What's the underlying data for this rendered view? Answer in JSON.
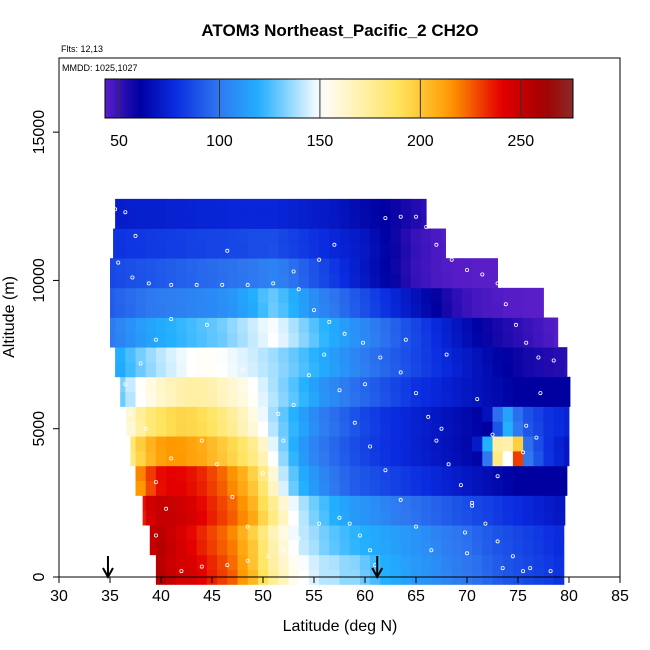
{
  "chart_data": {
    "type": "heatmap",
    "title": "ATOM3 Northeast_Pacific_2 CH2O",
    "flights_label": "Flts: 12,13",
    "mmdd_label": "MMDD: 1025,1027",
    "xlabel": "Latitude (deg N)",
    "ylabel": "Altitude (m)",
    "xlim": [
      30,
      85
    ],
    "ylim": [
      0,
      17500
    ],
    "x_ticks": [
      30,
      35,
      40,
      45,
      50,
      55,
      60,
      65,
      70,
      75,
      80,
      85
    ],
    "x_tick_labels": [
      "30",
      "35",
      "40",
      "45",
      "50",
      "55",
      "60",
      "65",
      "70",
      "75",
      "80",
      "85"
    ],
    "y_ticks": [
      0,
      5000,
      10000,
      15000
    ],
    "y_tick_labels": [
      "0",
      "5000",
      "10000",
      "15000"
    ],
    "colorbar": {
      "min": 43,
      "max": 276,
      "ticks": [
        50,
        100,
        150,
        200,
        250
      ],
      "tick_labels": [
        "50",
        "100",
        "150",
        "200",
        "250"
      ],
      "colors": [
        "#5a1ec9",
        "#0000a0",
        "#0a2ce0",
        "#2f78f0",
        "#22b0ff",
        "#ffffff",
        "#ffe35a",
        "#ff9900",
        "#e50000",
        "#a00000",
        "#8c2a2a"
      ]
    },
    "arrows_latitude": [
      34.8,
      61.2
    ],
    "latitude_bins": [
      35,
      36,
      37,
      38,
      39,
      40,
      41,
      42,
      43,
      44,
      45,
      46,
      47,
      48,
      49,
      50,
      51,
      52,
      53,
      54,
      55,
      56,
      57,
      58,
      59,
      60,
      61,
      62,
      63,
      64,
      65,
      66,
      67,
      68,
      69,
      70,
      71,
      72,
      73,
      74,
      75,
      76,
      77,
      78,
      79,
      80
    ],
    "altitude_bands": [
      {
        "altitude_m": 250,
        "values": [
          200,
          225,
          240,
          250,
          255,
          255,
          250,
          245,
          245,
          240,
          235,
          230,
          225,
          215,
          205,
          190,
          175,
          165,
          155,
          150,
          145,
          140,
          140,
          135,
          135,
          130,
          125,
          120,
          118,
          115,
          112,
          110,
          108,
          105,
          102,
          100,
          98,
          95,
          92,
          90,
          88,
          86,
          84,
          82,
          80,
          78
        ]
      },
      {
        "altitude_m": 1250,
        "values": [
          190,
          215,
          235,
          245,
          250,
          255,
          250,
          245,
          240,
          235,
          230,
          225,
          220,
          210,
          200,
          185,
          170,
          160,
          150,
          142,
          138,
          132,
          128,
          125,
          122,
          120,
          118,
          116,
          114,
          112,
          110,
          108,
          105,
          102,
          100,
          98,
          95,
          92,
          90,
          88,
          86,
          84,
          82,
          80,
          78,
          76
        ]
      },
      {
        "altitude_m": 2250,
        "values": [
          180,
          200,
          220,
          235,
          245,
          250,
          250,
          248,
          245,
          240,
          235,
          230,
          225,
          218,
          210,
          195,
          180,
          165,
          150,
          140,
          132,
          126,
          120,
          116,
          112,
          110,
          108,
          105,
          102,
          100,
          98,
          96,
          94,
          92,
          90,
          88,
          86,
          84,
          82,
          80,
          78,
          76,
          74,
          72,
          70,
          68
        ]
      },
      {
        "altitude_m": 3250,
        "values": [
          160,
          180,
          200,
          215,
          228,
          238,
          240,
          240,
          238,
          235,
          230,
          225,
          218,
          210,
          200,
          185,
          165,
          145,
          130,
          120,
          112,
          106,
          100,
          96,
          92,
          90,
          88,
          86,
          84,
          82,
          80,
          78,
          76,
          74,
          72,
          70,
          68,
          66,
          64,
          62,
          60,
          60,
          60,
          60,
          60,
          60
        ]
      },
      {
        "altitude_m": 4250,
        "values": [
          140,
          160,
          180,
          195,
          205,
          212,
          215,
          215,
          212,
          210,
          205,
          200,
          195,
          188,
          180,
          168,
          150,
          135,
          122,
          112,
          105,
          100,
          96,
          92,
          88,
          85,
          82,
          80,
          78,
          76,
          74,
          72,
          70,
          68,
          66,
          64,
          62,
          100,
          180,
          150,
          230,
          100,
          90,
          80,
          75,
          70
        ]
      },
      {
        "altitude_m": 5250,
        "values": [
          130,
          145,
          160,
          172,
          182,
          188,
          192,
          195,
          194,
          192,
          188,
          182,
          176,
          168,
          160,
          150,
          140,
          130,
          122,
          115,
          108,
          102,
          98,
          94,
          90,
          86,
          83,
          80,
          78,
          76,
          74,
          72,
          70,
          68,
          66,
          64,
          62,
          60,
          90,
          120,
          100,
          90,
          85,
          80,
          78,
          75
        ]
      },
      {
        "altitude_m": 6250,
        "values": [
          120,
          130,
          140,
          150,
          156,
          162,
          166,
          170,
          172,
          172,
          170,
          166,
          162,
          158,
          152,
          146,
          140,
          134,
          128,
          122,
          116,
          110,
          106,
          102,
          98,
          95,
          92,
          89,
          86,
          83,
          80,
          78,
          76,
          74,
          72,
          70,
          68,
          66,
          64,
          62,
          60,
          60,
          60,
          60,
          60,
          60
        ]
      },
      {
        "altitude_m": 7250,
        "values": [
          110,
          118,
          124,
          130,
          135,
          140,
          144,
          147,
          150,
          152,
          152,
          150,
          148,
          146,
          144,
          141,
          138,
          134,
          130,
          126,
          122,
          118,
          114,
          110,
          106,
          102,
          98,
          95,
          92,
          89,
          86,
          83,
          80,
          77,
          74,
          71,
          68,
          65,
          62,
          60,
          58,
          56,
          55,
          54,
          53,
          52
        ]
      },
      {
        "altitude_m": 8250,
        "values": [
          100,
          104,
          108,
          112,
          115,
          118,
          120,
          122,
          124,
          126,
          128,
          130,
          134,
          138,
          142,
          146,
          150,
          146,
          140,
          134,
          128,
          122,
          118,
          114,
          110,
          106,
          102,
          98,
          94,
          90,
          86,
          82,
          78,
          74,
          70,
          66,
          62,
          58,
          56,
          54,
          52,
          50,
          48,
          46,
          44,
          43
        ]
      },
      {
        "altitude_m": 9250,
        "values": [
          92,
          94,
          96,
          98,
          100,
          101,
          102,
          103,
          104,
          105,
          106,
          108,
          110,
          114,
          118,
          124,
          130,
          126,
          120,
          114,
          108,
          104,
          100,
          96,
          92,
          88,
          84,
          80,
          76,
          72,
          68,
          64,
          60,
          56,
          52,
          49,
          47,
          46,
          45,
          44,
          44,
          43,
          43,
          43,
          43,
          43
        ]
      },
      {
        "altitude_m": 10250,
        "values": [
          86,
          87,
          88,
          89,
          90,
          91,
          92,
          93,
          94,
          95,
          96,
          97,
          98,
          99,
          100,
          102,
          104,
          102,
          98,
          94,
          90,
          86,
          82,
          78,
          74,
          70,
          66,
          62,
          58,
          54,
          50,
          48,
          46,
          45,
          44,
          44,
          43,
          43,
          43,
          43,
          43,
          43,
          43,
          43,
          43,
          43
        ]
      },
      {
        "altitude_m": 11250,
        "values": [
          80,
          80,
          81,
          81,
          82,
          82,
          83,
          83,
          84,
          84,
          85,
          85,
          86,
          86,
          87,
          87,
          88,
          86,
          84,
          82,
          80,
          78,
          76,
          74,
          72,
          70,
          66,
          62,
          58,
          54,
          50,
          48,
          46,
          45,
          44,
          44,
          43,
          43,
          43,
          43,
          43,
          43,
          43,
          43,
          43,
          43
        ]
      },
      {
        "altitude_m": 12250,
        "values": [
          72,
          72,
          72,
          73,
          73,
          73,
          74,
          74,
          74,
          75,
          75,
          75,
          76,
          76,
          76,
          76,
          76,
          75,
          74,
          73,
          72,
          71,
          70,
          68,
          66,
          64,
          62,
          60,
          58,
          56,
          54,
          52,
          50,
          48,
          46,
          45,
          44,
          44,
          43,
          43,
          43,
          43,
          43,
          43,
          43,
          43
        ]
      }
    ],
    "profile_extent": [
      {
        "altitude_m": 250,
        "lat_min": 39.5,
        "lat_max": 79.5
      },
      {
        "altitude_m": 1250,
        "lat_min": 38.9,
        "lat_max": 79.5
      },
      {
        "altitude_m": 2250,
        "lat_min": 38.2,
        "lat_max": 79.6
      },
      {
        "altitude_m": 3250,
        "lat_min": 37.5,
        "lat_max": 79.8
      },
      {
        "altitude_m": 4250,
        "lat_min": 37.0,
        "lat_max": 80.0
      },
      {
        "altitude_m": 5250,
        "lat_min": 36.6,
        "lat_max": 80.0
      },
      {
        "altitude_m": 6250,
        "lat_min": 36.0,
        "lat_max": 80.1
      },
      {
        "altitude_m": 7250,
        "lat_min": 35.5,
        "lat_max": 79.8
      },
      {
        "altitude_m": 8250,
        "lat_min": 35.0,
        "lat_max": 78.9
      },
      {
        "altitude_m": 9250,
        "lat_min": 35.0,
        "lat_max": 77.5
      },
      {
        "altitude_m": 10250,
        "lat_min": 35.0,
        "lat_max": 73.0
      },
      {
        "altitude_m": 11250,
        "lat_min": 35.3,
        "lat_max": 67.9
      },
      {
        "altitude_m": 12250,
        "lat_min": 35.5,
        "lat_max": 66.0
      }
    ],
    "flight_track": [
      {
        "lat": 35.5,
        "alt": 12400
      },
      {
        "lat": 36.5,
        "alt": 12300
      },
      {
        "lat": 37.5,
        "alt": 11500
      },
      {
        "lat": 35.8,
        "alt": 10600
      },
      {
        "lat": 37.2,
        "alt": 10100
      },
      {
        "lat": 38.8,
        "alt": 9900
      },
      {
        "lat": 41.0,
        "alt": 9850
      },
      {
        "lat": 43.5,
        "alt": 9850
      },
      {
        "lat": 46.0,
        "alt": 9850
      },
      {
        "lat": 48.5,
        "alt": 9850
      },
      {
        "lat": 51.0,
        "alt": 9900
      },
      {
        "lat": 53.0,
        "alt": 10300
      },
      {
        "lat": 53.5,
        "alt": 9700
      },
      {
        "lat": 55.0,
        "alt": 9000
      },
      {
        "lat": 56.5,
        "alt": 8600
      },
      {
        "lat": 58.0,
        "alt": 8200
      },
      {
        "lat": 59.8,
        "alt": 7900
      },
      {
        "lat": 61.5,
        "alt": 7400
      },
      {
        "lat": 63.5,
        "alt": 6900
      },
      {
        "lat": 65.0,
        "alt": 6200
      },
      {
        "lat": 66.2,
        "alt": 5400
      },
      {
        "lat": 67.0,
        "alt": 4600
      },
      {
        "lat": 68.2,
        "alt": 3800
      },
      {
        "lat": 69.4,
        "alt": 3100
      },
      {
        "lat": 70.5,
        "alt": 2400
      },
      {
        "lat": 71.8,
        "alt": 1800
      },
      {
        "lat": 73.0,
        "alt": 1200
      },
      {
        "lat": 74.5,
        "alt": 700
      },
      {
        "lat": 76.2,
        "alt": 300
      },
      {
        "lat": 78.2,
        "alt": 200
      },
      {
        "lat": 62.0,
        "alt": 12100
      },
      {
        "lat": 63.5,
        "alt": 12150
      },
      {
        "lat": 65.0,
        "alt": 12150
      },
      {
        "lat": 66.0,
        "alt": 11800
      },
      {
        "lat": 67.0,
        "alt": 11200
      },
      {
        "lat": 68.5,
        "alt": 10700
      },
      {
        "lat": 70.0,
        "alt": 10350
      },
      {
        "lat": 71.5,
        "alt": 10200
      },
      {
        "lat": 73.0,
        "alt": 9900
      },
      {
        "lat": 73.8,
        "alt": 9200
      },
      {
        "lat": 74.8,
        "alt": 8500
      },
      {
        "lat": 75.8,
        "alt": 7900
      },
      {
        "lat": 77.0,
        "alt": 7400
      },
      {
        "lat": 78.5,
        "alt": 7300
      },
      {
        "lat": 77.2,
        "alt": 6200
      },
      {
        "lat": 75.8,
        "alt": 5100
      },
      {
        "lat": 76.8,
        "alt": 4700
      },
      {
        "lat": 75.5,
        "alt": 4200
      },
      {
        "lat": 73.0,
        "alt": 3400
      },
      {
        "lat": 70.5,
        "alt": 2500
      },
      {
        "lat": 69.8,
        "alt": 1500
      },
      {
        "lat": 70.0,
        "alt": 800
      },
      {
        "lat": 73.5,
        "alt": 300
      },
      {
        "lat": 75.5,
        "alt": 200
      },
      {
        "lat": 42.0,
        "alt": 200
      },
      {
        "lat": 44.0,
        "alt": 350
      },
      {
        "lat": 46.5,
        "alt": 400
      },
      {
        "lat": 48.5,
        "alt": 550
      },
      {
        "lat": 50.5,
        "alt": 700
      },
      {
        "lat": 52.0,
        "alt": 900
      },
      {
        "lat": 53.5,
        "alt": 1300
      },
      {
        "lat": 55.5,
        "alt": 1800
      },
      {
        "lat": 57.5,
        "alt": 2000
      },
      {
        "lat": 58.5,
        "alt": 1800
      },
      {
        "lat": 59.5,
        "alt": 1400
      },
      {
        "lat": 60.5,
        "alt": 900
      },
      {
        "lat": 61.0,
        "alt": 400
      },
      {
        "lat": 39.5,
        "alt": 1400
      },
      {
        "lat": 40.5,
        "alt": 2300
      },
      {
        "lat": 39.5,
        "alt": 3200
      },
      {
        "lat": 41.0,
        "alt": 4000
      },
      {
        "lat": 38.5,
        "alt": 5000
      },
      {
        "lat": 37.0,
        "alt": 5500
      },
      {
        "lat": 36.5,
        "alt": 6500
      },
      {
        "lat": 38.0,
        "alt": 7200
      },
      {
        "lat": 39.5,
        "alt": 8000
      },
      {
        "lat": 41.0,
        "alt": 8700
      },
      {
        "lat": 44.0,
        "alt": 4600
      },
      {
        "lat": 45.5,
        "alt": 3800
      },
      {
        "lat": 47.0,
        "alt": 2700
      },
      {
        "lat": 48.5,
        "alt": 1700
      },
      {
        "lat": 50.0,
        "alt": 3500
      },
      {
        "lat": 52.0,
        "alt": 4600
      },
      {
        "lat": 53.0,
        "alt": 5800
      },
      {
        "lat": 54.5,
        "alt": 6800
      },
      {
        "lat": 56.0,
        "alt": 7500
      },
      {
        "lat": 57.5,
        "alt": 6300
      },
      {
        "lat": 59.0,
        "alt": 5200
      },
      {
        "lat": 60.5,
        "alt": 4400
      },
      {
        "lat": 62.0,
        "alt": 3600
      },
      {
        "lat": 63.5,
        "alt": 2600
      },
      {
        "lat": 65.0,
        "alt": 1700
      },
      {
        "lat": 66.5,
        "alt": 900
      },
      {
        "lat": 55.5,
        "alt": 10700
      },
      {
        "lat": 57.0,
        "alt": 11200
      },
      {
        "lat": 46.5,
        "alt": 11000
      },
      {
        "lat": 44.5,
        "alt": 8500
      },
      {
        "lat": 48.0,
        "alt": 7000
      },
      {
        "lat": 51.5,
        "alt": 5500
      },
      {
        "lat": 60.0,
        "alt": 6500
      },
      {
        "lat": 64.0,
        "alt": 8000
      },
      {
        "lat": 68.0,
        "alt": 7500
      },
      {
        "lat": 71.0,
        "alt": 6000
      },
      {
        "lat": 72.5,
        "alt": 4800
      },
      {
        "lat": 67.5,
        "alt": 5000
      }
    ]
  }
}
